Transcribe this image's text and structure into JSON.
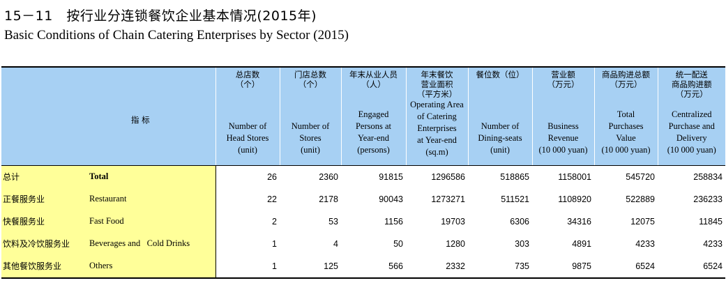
{
  "title": {
    "cn": "15－11　按行业分连锁餐饮企业基本情况(2015年)",
    "en": "Basic Conditions of Chain Catering Enterprises by Sector (2015)"
  },
  "header": {
    "indicator": "指 标",
    "columns": [
      {
        "cn": [
          "总店数",
          "（个）"
        ],
        "en": [
          "Number of",
          "Head Stores",
          "(unit)"
        ]
      },
      {
        "cn": [
          "门店总数",
          "（个）"
        ],
        "en": [
          "Number of",
          "Stores",
          "(unit)"
        ]
      },
      {
        "cn": [
          "年末从业人员",
          "（人）"
        ],
        "en": [
          "Engaged",
          "Persons at",
          "Year-end",
          "(persons)"
        ]
      },
      {
        "cn": [
          "年末餐饮",
          "营业面积",
          "（平方米）"
        ],
        "en": [
          "Operating Area",
          "of Catering",
          "Enterprises",
          "at Year-end",
          "(sq.m)"
        ]
      },
      {
        "cn": [
          "餐位数（位）"
        ],
        "en": [
          "Number of",
          "Dining-seats",
          "(unit)"
        ]
      },
      {
        "cn": [
          "营业额",
          "（万元）"
        ],
        "en": [
          "Business",
          "Revenue",
          "(10 000 yuan)"
        ]
      },
      {
        "cn": [
          "商品购进总额",
          "（万元）"
        ],
        "en": [
          "Total",
          "Purchases",
          "Value",
          "(10 000 yuan)"
        ]
      },
      {
        "cn": [
          "统一配送",
          "商品购进额",
          "（万元）"
        ],
        "en": [
          "Centralized",
          "Purchase and",
          "Delivery",
          "(10 000 yuan)"
        ]
      }
    ]
  },
  "rows": [
    {
      "cn": "总计",
      "en": "Total",
      "values": [
        "26",
        "2360",
        "91815",
        "1296586",
        "518865",
        "1158001",
        "545720",
        "258834"
      ]
    },
    {
      "cn": "正餐服务业",
      "en": "Restaurant",
      "values": [
        "22",
        "2178",
        "90043",
        "1273271",
        "511521",
        "1108920",
        "522889",
        "236233"
      ]
    },
    {
      "cn": "快餐服务业",
      "en": "Fast Food",
      "values": [
        "2",
        "53",
        "1156",
        "19703",
        "6306",
        "34316",
        "12075",
        "11845"
      ]
    },
    {
      "cn": "饮料及冷饮服务业",
      "en": "Beverages and   Cold Drinks",
      "values": [
        "1",
        "4",
        "50",
        "1280",
        "303",
        "4891",
        "4233",
        "4233"
      ]
    },
    {
      "cn": "其他餐饮服务业",
      "en": "Others",
      "values": [
        "1",
        "125",
        "566",
        "2332",
        "735",
        "9875",
        "6524",
        "6524"
      ]
    }
  ],
  "colors": {
    "header_bg": "#a7d0f3",
    "indicator_bg": "#ffff99"
  }
}
